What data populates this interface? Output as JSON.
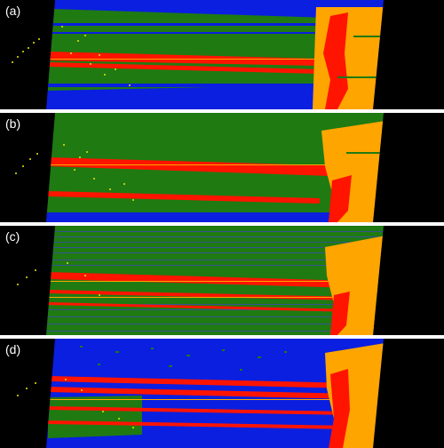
{
  "panels": [
    {
      "id": "a",
      "label": "(a)",
      "dominant_class": "green"
    },
    {
      "id": "b",
      "label": "(b)",
      "dominant_class": "green"
    },
    {
      "id": "c",
      "label": "(c)",
      "dominant_class": "green-with-blue-streaks"
    },
    {
      "id": "d",
      "label": "(d)",
      "dominant_class": "blue"
    }
  ],
  "colors": {
    "background": "#000000",
    "separator": "#ffffff",
    "green": "#1f7a12",
    "blue": "#0a1fe0",
    "red": "#ff1400",
    "orange": "#ffa500",
    "yellow": "#e8e800",
    "label_text": "#ffffff"
  }
}
